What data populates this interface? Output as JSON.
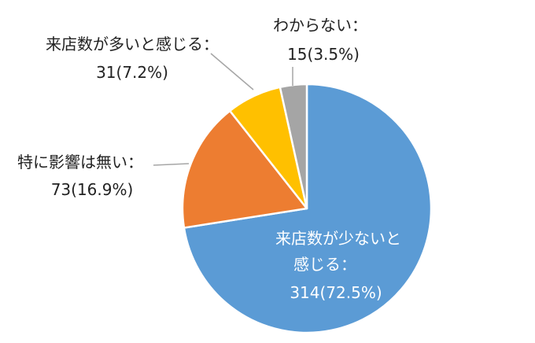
{
  "chart_data": {
    "type": "pie",
    "title": "",
    "start": "12 o'clock",
    "direction": "clockwise",
    "slices": [
      {
        "category": "来店数が少ないと感じる",
        "value": 314,
        "percent": 72.5,
        "color": "#5B9BD5",
        "label_lines": [
          "来店数が少ないと",
          "感じる：",
          "314(72.5%)"
        ]
      },
      {
        "category": "特に影響は無い",
        "value": 73,
        "percent": 16.9,
        "color": "#ED7D31",
        "label_lines": [
          "特に影響は無い：",
          "73(16.9%)"
        ]
      },
      {
        "category": "来店数が多いと感じる",
        "value": 31,
        "percent": 7.2,
        "color": "#FFC000",
        "label_lines": [
          "来店数が多いと感じる：",
          "31(7.2%)"
        ]
      },
      {
        "category": "わからない",
        "value": 15,
        "percent": 3.5,
        "color": "#A5A5A5",
        "label_lines": [
          "わからない：",
          "15(3.5%)"
        ]
      }
    ]
  }
}
